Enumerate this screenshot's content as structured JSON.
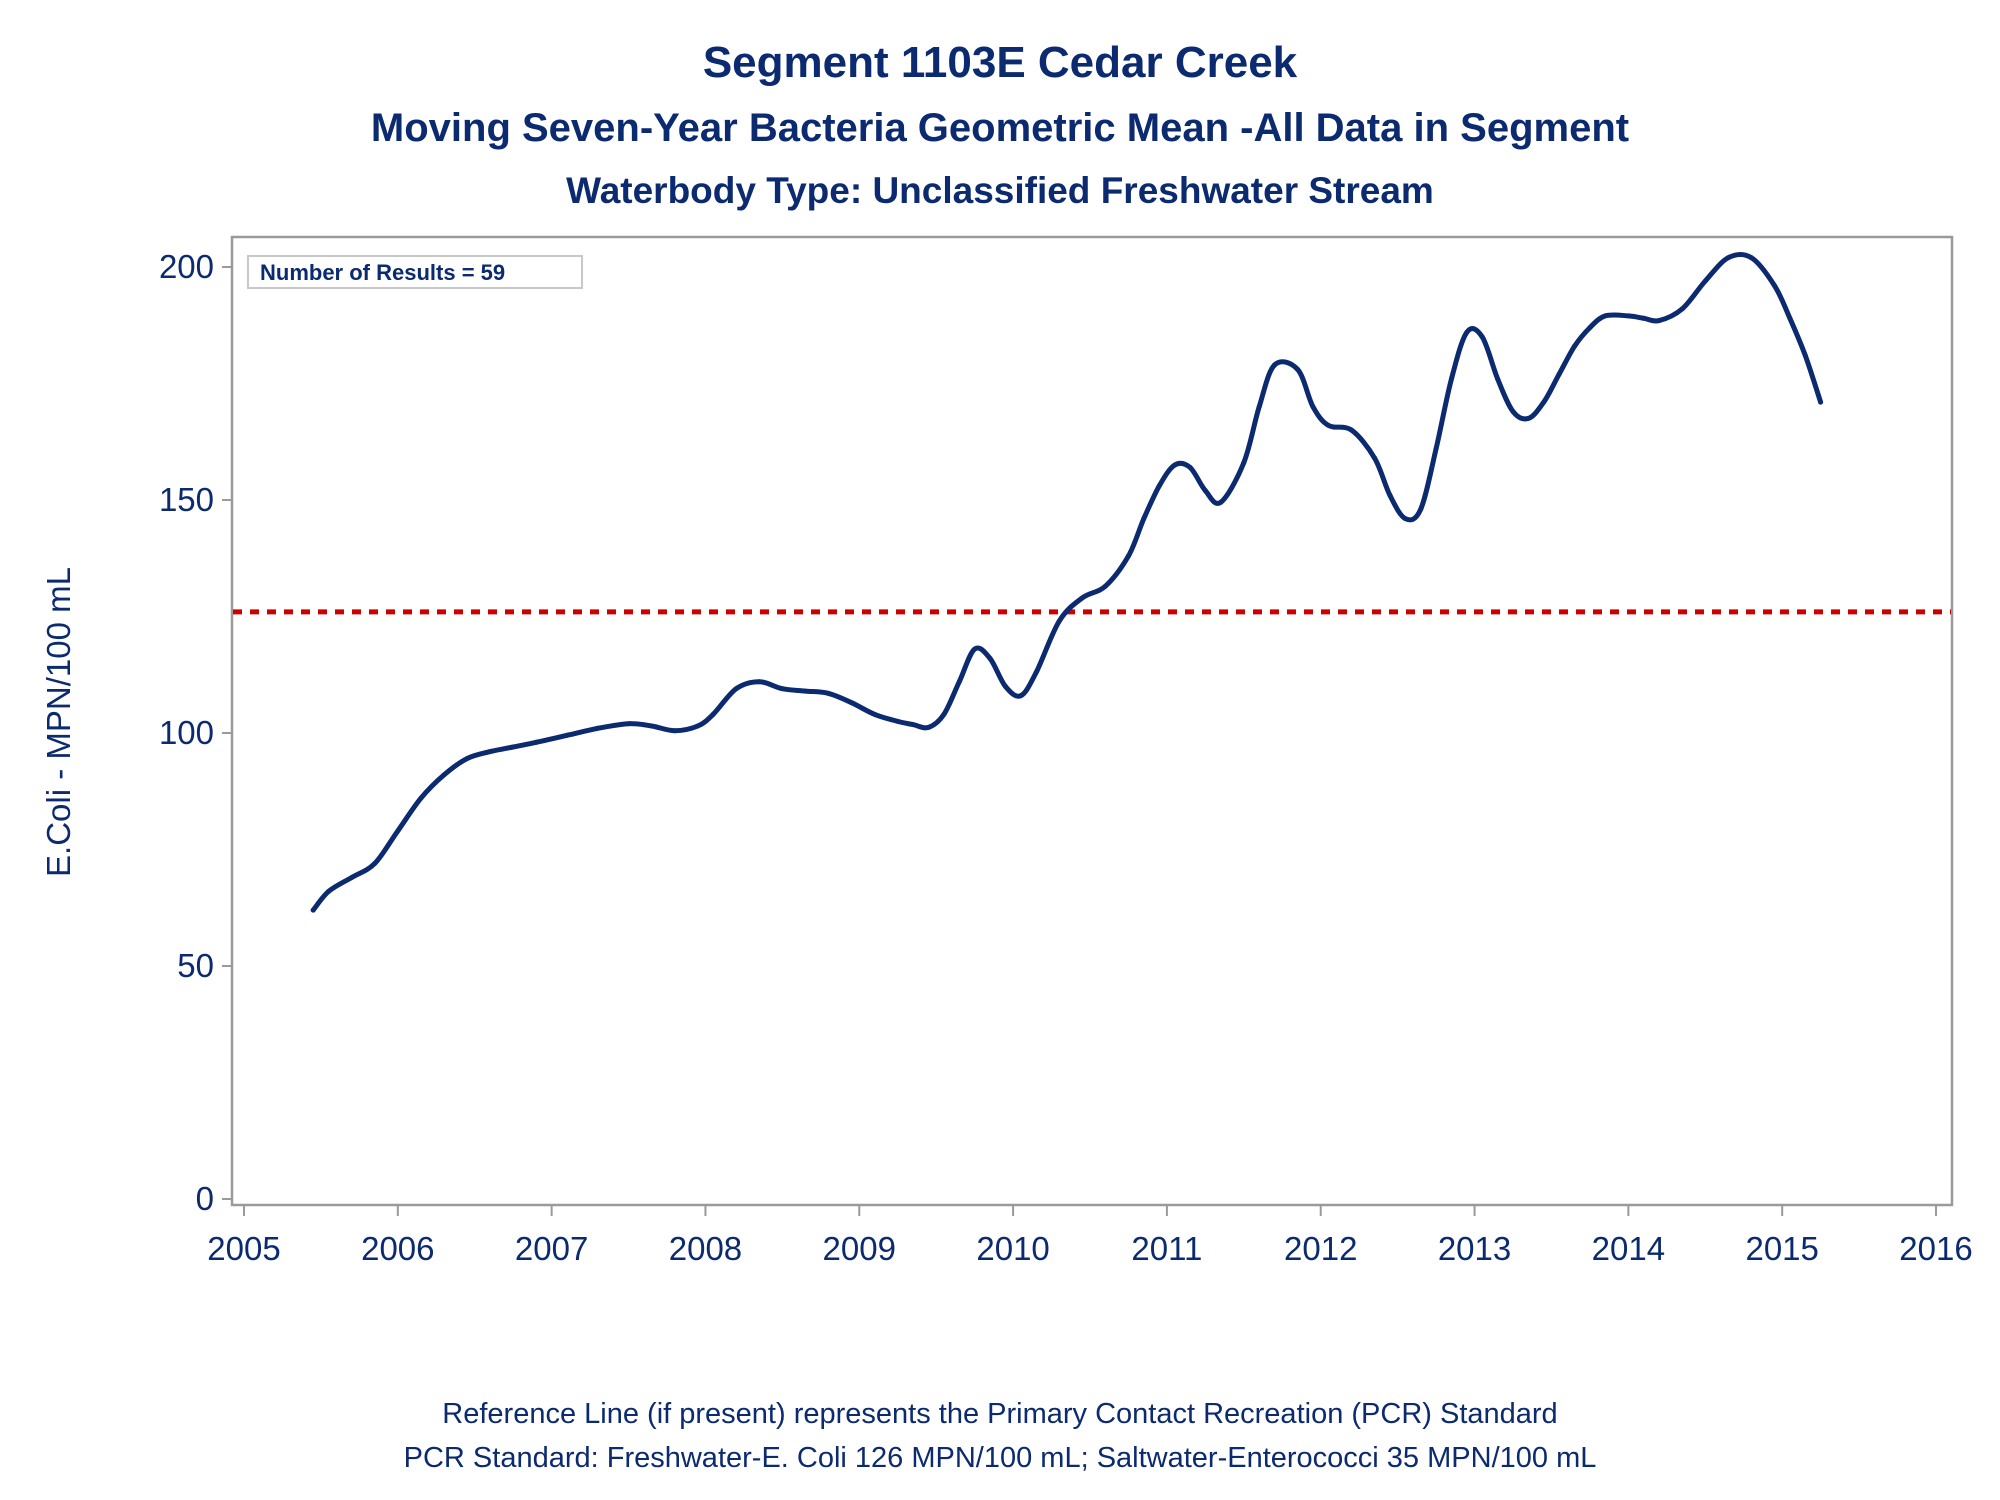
{
  "title": "Segment 1103E   Cedar Creek",
  "subtitle1": "Moving Seven-Year Bacteria Geometric Mean -All Data in Segment",
  "subtitle2": "Waterbody Type: Unclassified Freshwater Stream",
  "footnote1": "Reference Line (if present) represents the Primary Contact Recreation (PCR) Standard",
  "footnote2": "PCR Standard: Freshwater-E. Coli 126 MPN/100 mL; Saltwater-Enterococci 35 MPN/100 mL",
  "colors": {
    "line": "#0b2a6f",
    "reference": "#cc0000",
    "frame": "#9a9a9a",
    "text": "#0b2a6f"
  },
  "chart_data": {
    "type": "line",
    "ylabel": "E.Coli - MPN/100 mL",
    "xlabel": "",
    "xlim": [
      2005,
      2016
    ],
    "ylim": [
      0,
      205
    ],
    "x_ticks": [
      2005,
      2006,
      2007,
      2008,
      2009,
      2010,
      2011,
      2012,
      2013,
      2014,
      2015,
      2016
    ],
    "y_ticks": [
      0,
      50,
      100,
      150,
      200
    ],
    "annotation": "Number of Results = 59",
    "reference_line": {
      "y": 126,
      "style": "dashed"
    },
    "series": [
      {
        "x": [
          2005.45,
          2005.55,
          2005.7,
          2005.85,
          2006.0,
          2006.15,
          2006.3,
          2006.45,
          2006.6,
          2006.75,
          2006.9,
          2007.1,
          2007.3,
          2007.5,
          2007.65,
          2007.8,
          2007.95,
          2008.05,
          2008.2,
          2008.35,
          2008.5,
          2008.65,
          2008.8,
          2008.95,
          2009.1,
          2009.25,
          2009.35,
          2009.45,
          2009.55,
          2009.65,
          2009.75,
          2009.85,
          2009.95,
          2010.05,
          2010.15,
          2010.3,
          2010.45,
          2010.6,
          2010.75,
          2010.85,
          2010.95,
          2011.05,
          2011.15,
          2011.25,
          2011.35,
          2011.5,
          2011.6,
          2011.7,
          2011.85,
          2011.95,
          2012.05,
          2012.2,
          2012.35,
          2012.45,
          2012.55,
          2012.65,
          2012.75,
          2012.85,
          2012.95,
          2013.05,
          2013.15,
          2013.25,
          2013.35,
          2013.45,
          2013.55,
          2013.65,
          2013.75,
          2013.85,
          2014.0,
          2014.1,
          2014.2,
          2014.35,
          2014.5,
          2014.65,
          2014.8,
          2014.95,
          2015.05,
          2015.15,
          2015.25
        ],
        "y": [
          62,
          66,
          69,
          72,
          79,
          86,
          91,
          94.5,
          96,
          97,
          98,
          99.5,
          101,
          102,
          101.5,
          100.5,
          101.5,
          104,
          109.5,
          111,
          109.5,
          109,
          108.5,
          106.5,
          104,
          102.5,
          101.8,
          101.2,
          104,
          111,
          118,
          116,
          110,
          108,
          113,
          124,
          129,
          131.5,
          138,
          146,
          153,
          157.5,
          157,
          152,
          149.5,
          158,
          170,
          179,
          178,
          170,
          166,
          165,
          159,
          151,
          146,
          148,
          161,
          176,
          186,
          185,
          176,
          169,
          167.5,
          171,
          177,
          183,
          187,
          189.5,
          189.5,
          189,
          188.5,
          191,
          197,
          202,
          202,
          196,
          189,
          181,
          171
        ]
      }
    ]
  }
}
